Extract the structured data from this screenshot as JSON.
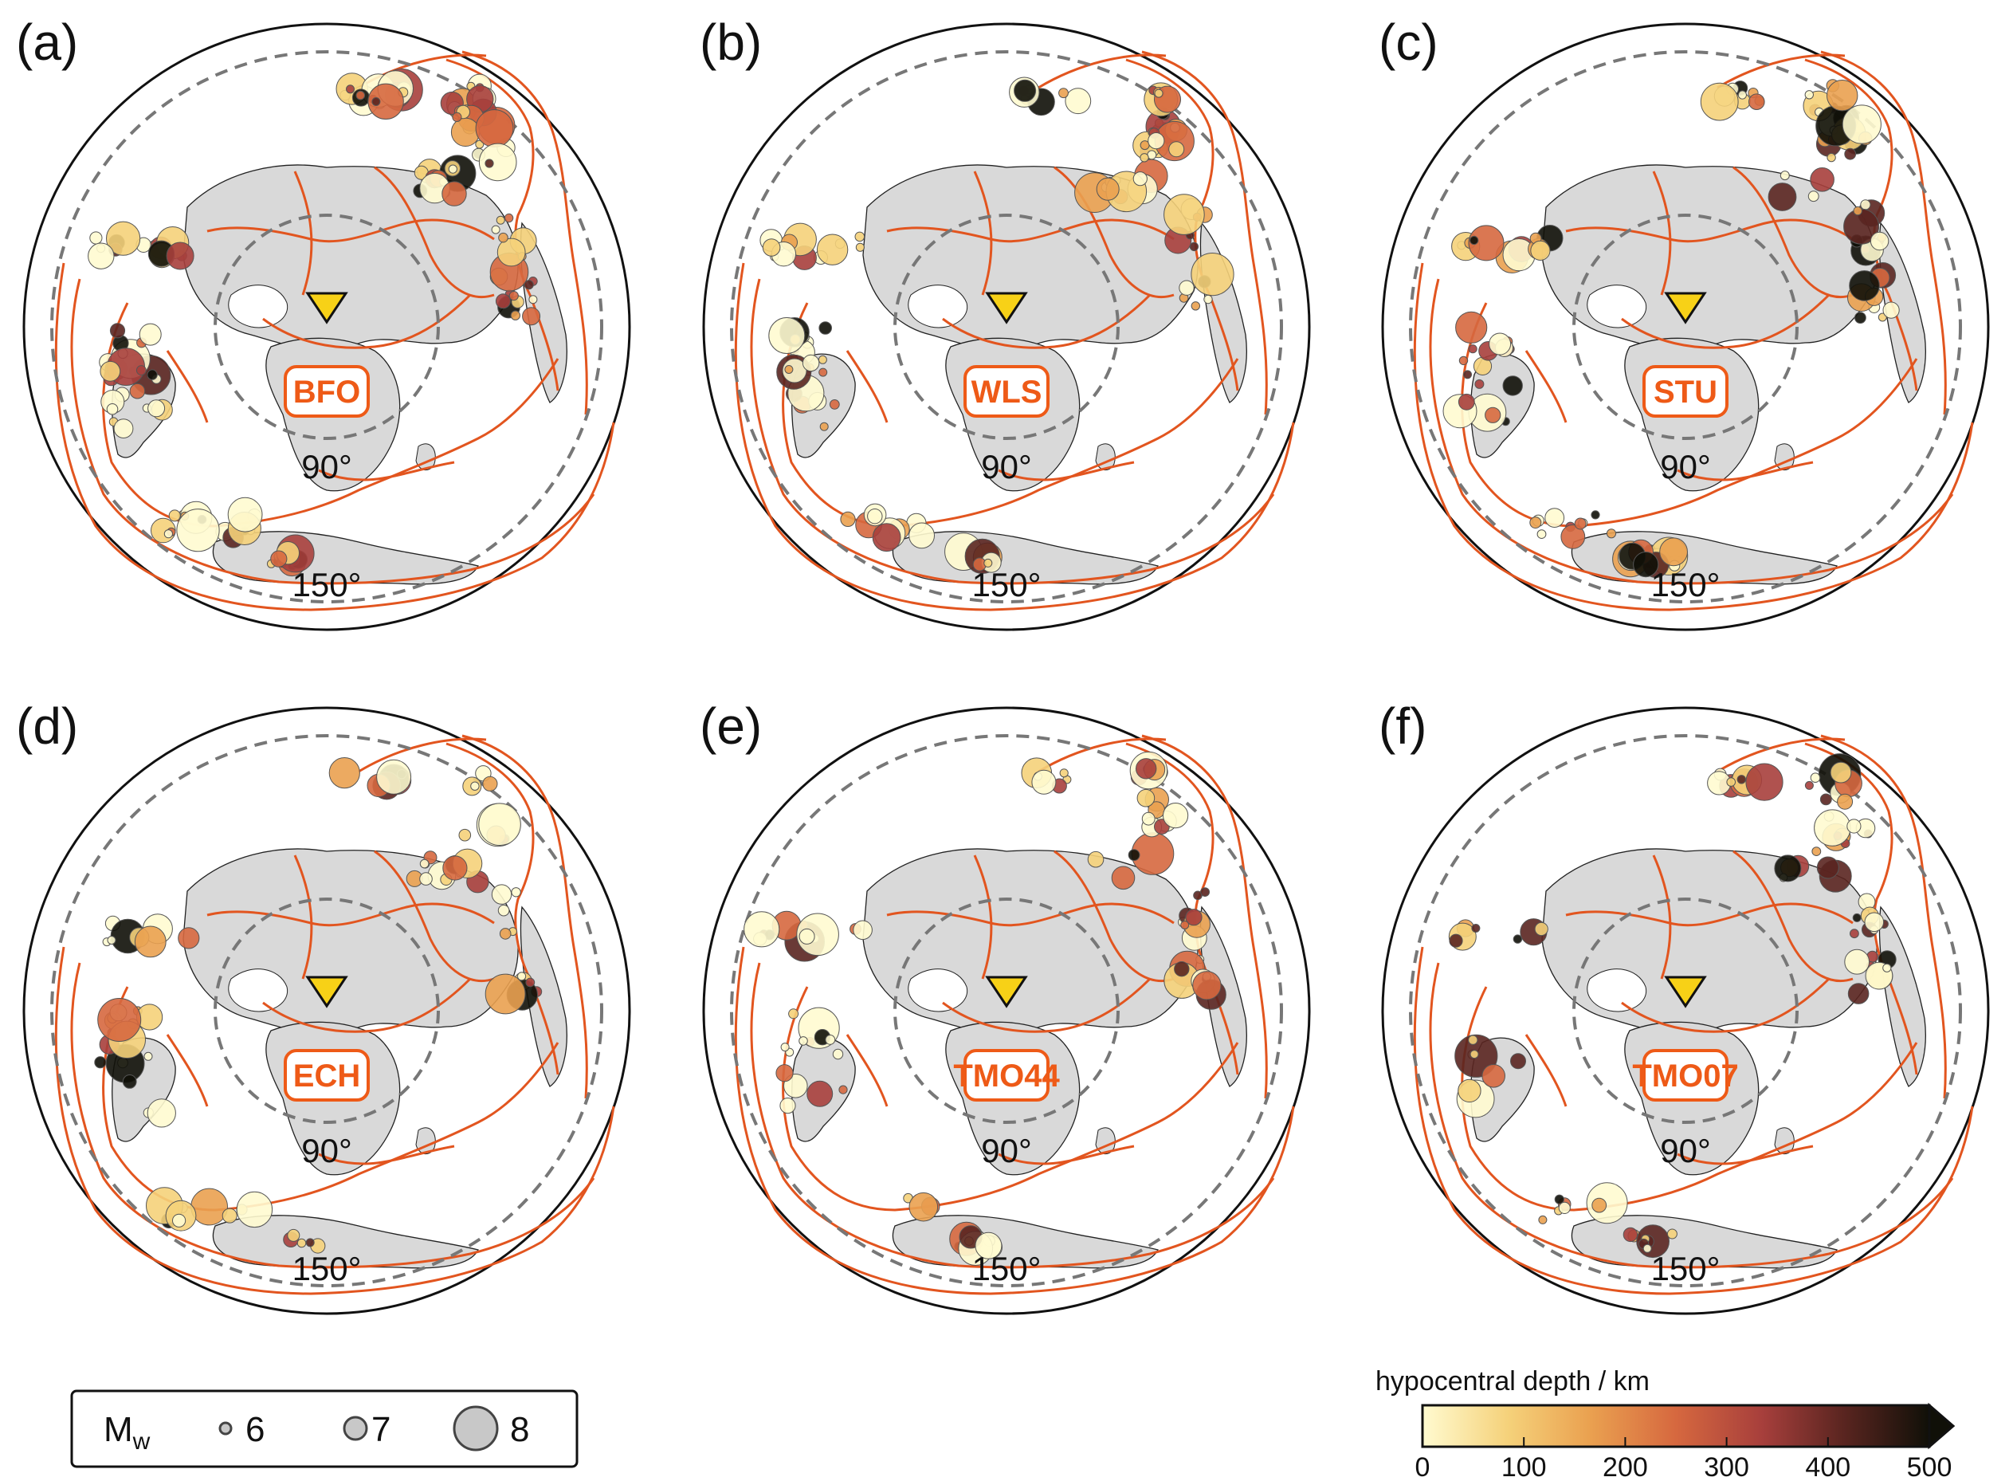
{
  "panels": [
    {
      "letter": "(a)",
      "station": "BFO",
      "dist_inner": "90°",
      "dist_outer": "150°"
    },
    {
      "letter": "(b)",
      "station": "WLS",
      "dist_inner": "90°",
      "dist_outer": "150°"
    },
    {
      "letter": "(c)",
      "station": "STU",
      "dist_inner": "90°",
      "dist_outer": "150°"
    },
    {
      "letter": "(d)",
      "station": "ECH",
      "dist_inner": "90°",
      "dist_outer": "150°"
    },
    {
      "letter": "(e)",
      "station": "TMO44",
      "dist_inner": "90°",
      "dist_outer": "150°"
    },
    {
      "letter": "(f)",
      "station": "TMO07",
      "dist_inner": "90°",
      "dist_outer": "150°"
    }
  ],
  "magnitude_legend": {
    "label_main": "M",
    "label_sub": "w",
    "items": [
      "6",
      "7",
      "8"
    ]
  },
  "colorbar": {
    "title": "hypocentral depth / km",
    "ticks": [
      "0",
      "100",
      "200",
      "300",
      "400",
      "500"
    ],
    "min": 0,
    "max": 500,
    "colors": [
      "#fffbd0",
      "#f5d17a",
      "#eaa150",
      "#d6683f",
      "#a73f3c",
      "#5a2520",
      "#101008"
    ]
  },
  "colors": {
    "plate_boundary": "#e2551f",
    "land": "#d9d9d9",
    "range_ring": "#777777",
    "station_marker": "#f7d117",
    "station_box": "#ee5a17"
  }
}
